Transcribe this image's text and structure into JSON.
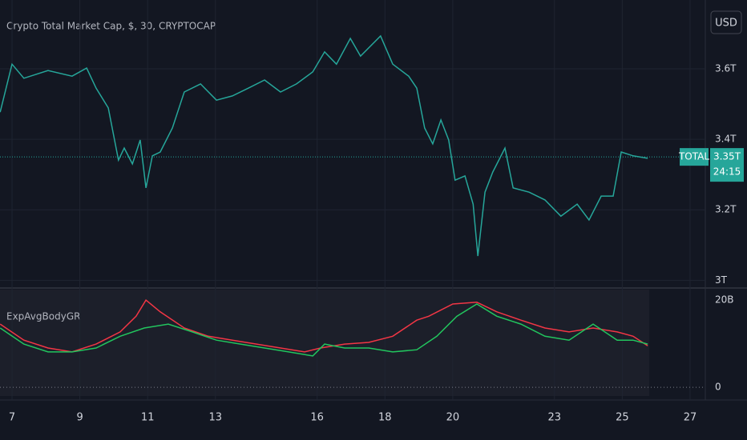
{
  "chart_data": [
    {
      "type": "line",
      "title": "Crypto Total Market Cap, $, 30, CRYPTOCAP",
      "currency": "USD",
      "xlim": [
        6.645,
        27.45
      ],
      "xticks": [
        7,
        9,
        11,
        13,
        16,
        18,
        20,
        23,
        25,
        27
      ],
      "ylim": [
        2.985,
        3.795
      ],
      "yticks": [
        {
          "value": 3.0,
          "label": "3T"
        },
        {
          "value": 3.2,
          "label": "3.2T"
        },
        {
          "value": 3.4,
          "label": "3.4T"
        },
        {
          "value": 3.6,
          "label": "3.6T"
        }
      ],
      "grid": true,
      "last_value": {
        "value": 3.35,
        "label": "3.35T"
      },
      "countdown": "24:15",
      "series": [
        {
          "name": "TOTAL",
          "color": "#26a69a",
          "x": [
            6.65,
            7.0,
            7.35,
            8.06,
            8.77,
            9.2,
            9.48,
            9.84,
            10.14,
            10.31,
            10.55,
            10.78,
            10.95,
            11.14,
            11.37,
            11.73,
            12.08,
            12.56,
            13.03,
            13.5,
            13.97,
            14.45,
            14.92,
            15.39,
            15.87,
            16.22,
            16.57,
            16.98,
            17.28,
            17.87,
            18.23,
            18.7,
            18.94,
            19.17,
            19.41,
            19.65,
            19.88,
            20.07,
            20.36,
            20.6,
            20.74,
            20.95,
            21.18,
            21.54,
            21.78,
            22.25,
            22.72,
            23.19,
            23.67,
            24.02,
            24.38,
            24.73,
            24.97,
            25.32,
            25.75
          ],
          "values": [
            3.477,
            3.613,
            3.573,
            3.595,
            3.579,
            3.602,
            3.545,
            3.489,
            3.341,
            3.375,
            3.33,
            3.398,
            3.262,
            3.353,
            3.364,
            3.432,
            3.534,
            3.557,
            3.511,
            3.523,
            3.545,
            3.568,
            3.534,
            3.557,
            3.591,
            3.648,
            3.613,
            3.686,
            3.636,
            3.693,
            3.613,
            3.579,
            3.545,
            3.432,
            3.387,
            3.455,
            3.398,
            3.284,
            3.296,
            3.216,
            3.069,
            3.25,
            3.307,
            3.375,
            3.262,
            3.25,
            3.228,
            3.182,
            3.216,
            3.171,
            3.239,
            3.239,
            3.364,
            3.353,
            3.346
          ]
        }
      ]
    },
    {
      "type": "line",
      "title": "ExpAvgBodyGR",
      "xlim": [
        6.645,
        27.45
      ],
      "ylim": [
        -2.0,
        22.4
      ],
      "yticks": [
        0,
        {
          "value": 20,
          "label": "20B"
        }
      ],
      "series": [
        {
          "color": "#f23645",
          "x": [
            6.65,
            7.35,
            8.06,
            8.77,
            9.48,
            10.19,
            10.66,
            10.95,
            11.37,
            12.08,
            12.79,
            13.5,
            14.21,
            14.92,
            15.63,
            16.1,
            16.81,
            17.52,
            18.23,
            18.94,
            19.29,
            20.0,
            20.71,
            21.3,
            22.01,
            22.72,
            23.43,
            24.14,
            24.85,
            25.32,
            25.75
          ],
          "values": [
            14.5,
            10.8,
            9.0,
            8.1,
            9.9,
            12.7,
            16.3,
            20.0,
            17.3,
            13.6,
            11.7,
            10.8,
            9.9,
            9.0,
            8.1,
            9.0,
            9.9,
            10.3,
            11.7,
            15.4,
            16.3,
            19.1,
            19.5,
            17.3,
            15.4,
            13.6,
            12.7,
            13.6,
            12.7,
            11.7,
            9.5
          ]
        },
        {
          "color": "#22c55e",
          "x": [
            6.65,
            7.35,
            8.06,
            8.77,
            9.48,
            10.19,
            10.9,
            11.61,
            12.32,
            13.03,
            13.74,
            14.45,
            15.16,
            15.87,
            16.22,
            16.81,
            17.52,
            18.23,
            18.94,
            19.53,
            20.12,
            20.71,
            21.3,
            22.01,
            22.72,
            23.43,
            24.14,
            24.85,
            25.32,
            25.75
          ],
          "values": [
            13.6,
            9.9,
            8.1,
            8.1,
            9.0,
            11.7,
            13.6,
            14.5,
            12.7,
            10.8,
            9.9,
            9.0,
            8.1,
            7.2,
            9.9,
            9.0,
            9.0,
            8.1,
            8.6,
            11.7,
            16.3,
            19.1,
            16.3,
            14.5,
            11.7,
            10.8,
            14.5,
            10.8,
            10.8,
            9.9
          ]
        }
      ]
    }
  ]
}
